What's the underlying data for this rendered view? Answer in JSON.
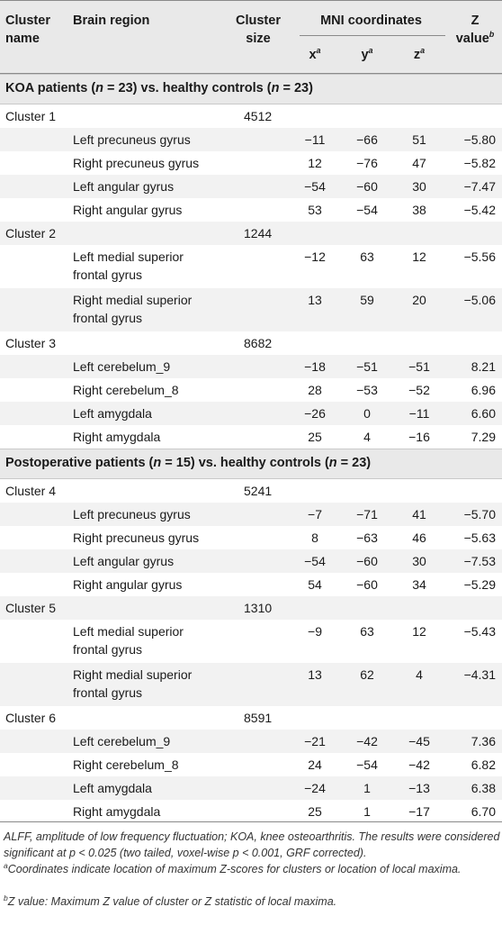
{
  "header": {
    "cluster_name": [
      "Cluster",
      "name"
    ],
    "brain_region": "Brain region",
    "cluster_size": [
      "Cluster",
      "size"
    ],
    "mni": "MNI coordinates",
    "x": "x",
    "y": "y",
    "z": "z",
    "coord_sup": "a",
    "zvalue": [
      "Z",
      "value"
    ],
    "zvalue_sup": "b"
  },
  "groups": [
    {
      "label_parts": [
        "KOA patients (",
        "n",
        " = 23) vs. healthy controls (",
        "n",
        " = 23)"
      ],
      "clusters": [
        {
          "name": "Cluster 1",
          "size": "4512",
          "rows": [
            {
              "region": [
                "Left precuneus gyrus"
              ],
              "x": "−11",
              "y": "−66",
              "z": "51",
              "z_value": "−5.80"
            },
            {
              "region": [
                "Right precuneus gyrus"
              ],
              "x": "12",
              "y": "−76",
              "z": "47",
              "z_value": "−5.82"
            },
            {
              "region": [
                "Left angular gyrus"
              ],
              "x": "−54",
              "y": "−60",
              "z": "30",
              "z_value": "−7.47"
            },
            {
              "region": [
                "Right angular gyrus"
              ],
              "x": "53",
              "y": "−54",
              "z": "38",
              "z_value": "−5.42"
            }
          ]
        },
        {
          "name": "Cluster 2",
          "size": "1244",
          "rows": [
            {
              "region": [
                "Left medial superior",
                "frontal gyrus"
              ],
              "x": "−12",
              "y": "63",
              "z": "12",
              "z_value": "−5.56"
            },
            {
              "region": [
                "Right medial superior",
                "frontal gyrus"
              ],
              "x": "13",
              "y": "59",
              "z": "20",
              "z_value": "−5.06"
            }
          ]
        },
        {
          "name": "Cluster 3",
          "size": "8682",
          "rows": [
            {
              "region": [
                "Left cerebelum_9"
              ],
              "x": "−18",
              "y": "−51",
              "z": "−51",
              "z_value": "8.21"
            },
            {
              "region": [
                "Right cerebelum_8"
              ],
              "x": "28",
              "y": "−53",
              "z": "−52",
              "z_value": "6.96"
            },
            {
              "region": [
                "Left amygdala"
              ],
              "x": "−26",
              "y": "0",
              "z": "−11",
              "z_value": "6.60"
            },
            {
              "region": [
                "Right amygdala"
              ],
              "x": "25",
              "y": "4",
              "z": "−16",
              "z_value": "7.29"
            }
          ]
        }
      ]
    },
    {
      "label_parts": [
        "Postoperative patients (",
        "n",
        " = 15) vs. healthy controls (",
        "n",
        " = 23)"
      ],
      "clusters": [
        {
          "name": "Cluster 4",
          "size": "5241",
          "rows": [
            {
              "region": [
                "Left precuneus gyrus"
              ],
              "x": "−7",
              "y": "−71",
              "z": "41",
              "z_value": "−5.70"
            },
            {
              "region": [
                "Right precuneus gyrus"
              ],
              "x": "8",
              "y": "−63",
              "z": "46",
              "z_value": "−5.63"
            },
            {
              "region": [
                "Left angular gyrus"
              ],
              "x": "−54",
              "y": "−60",
              "z": "30",
              "z_value": "−7.53"
            },
            {
              "region": [
                "Right angular gyrus"
              ],
              "x": "54",
              "y": "−60",
              "z": "34",
              "z_value": "−5.29"
            }
          ]
        },
        {
          "name": "Cluster 5",
          "size": "1310",
          "rows": [
            {
              "region": [
                "Left medial superior",
                "frontal gyrus"
              ],
              "x": "−9",
              "y": "63",
              "z": "12",
              "z_value": "−5.43"
            },
            {
              "region": [
                "Right medial superior",
                "frontal gyrus"
              ],
              "x": "13",
              "y": "62",
              "z": "4",
              "z_value": "−4.31"
            }
          ]
        },
        {
          "name": "Cluster 6",
          "size": "8591",
          "rows": [
            {
              "region": [
                "Left cerebelum_9"
              ],
              "x": "−21",
              "y": "−42",
              "z": "−45",
              "z_value": "7.36"
            },
            {
              "region": [
                "Right cerebelum_8"
              ],
              "x": "24",
              "y": "−54",
              "z": "−42",
              "z_value": "6.82"
            },
            {
              "region": [
                "Left amygdala"
              ],
              "x": "−24",
              "y": "1",
              "z": "−13",
              "z_value": "6.38"
            },
            {
              "region": [
                "Right amygdala"
              ],
              "x": "25",
              "y": "1",
              "z": "−17",
              "z_value": "6.70"
            }
          ]
        }
      ]
    }
  ],
  "footnotes": {
    "abbrev": "ALFF, amplitude of low frequency fluctuation; KOA, knee osteoarthritis. The results were considered significant at p < 0.025 (two tailed, voxel-wise p < 0.001, GRF corrected).",
    "a_mark": "a",
    "a_text": "Coordinates indicate location of maximum Z-scores for clusters or location of local maxima.",
    "b_mark": "b",
    "b_text": "Z value: Maximum Z value of cluster or Z statistic of local maxima."
  }
}
